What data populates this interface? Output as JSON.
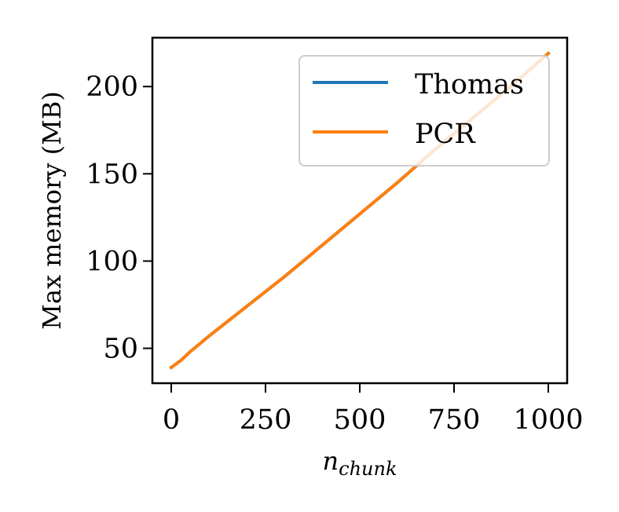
{
  "chart_data": {
    "type": "line",
    "title": "",
    "xlabel_base": "n",
    "xlabel_sub": "chunk",
    "ylabel": "Max memory (MB)",
    "xlim": [
      -50,
      1050
    ],
    "ylim": [
      30,
      228
    ],
    "xticks": [
      0,
      250,
      500,
      750,
      1000
    ],
    "xtick_labels": [
      "0",
      "250",
      "500",
      "750",
      "1000"
    ],
    "yticks": [
      50,
      100,
      150,
      200
    ],
    "ytick_labels": [
      "50",
      "100",
      "150",
      "200"
    ],
    "grid": false,
    "legend": {
      "position": "top-right"
    },
    "x": [
      0,
      25,
      50,
      100,
      200,
      300,
      400,
      500,
      600,
      700,
      800,
      900,
      1000
    ],
    "series": [
      {
        "name": "Thomas",
        "color": "#1f77b4",
        "values": [
          39,
          43,
          48,
          57,
          74,
          91,
          109,
          127,
          145,
          164,
          182,
          200,
          219
        ]
      },
      {
        "name": "PCR",
        "color": "#ff7f0e",
        "values": [
          39,
          43,
          48,
          57,
          74,
          91,
          109,
          127,
          145,
          164,
          182,
          200,
          219
        ]
      }
    ]
  }
}
